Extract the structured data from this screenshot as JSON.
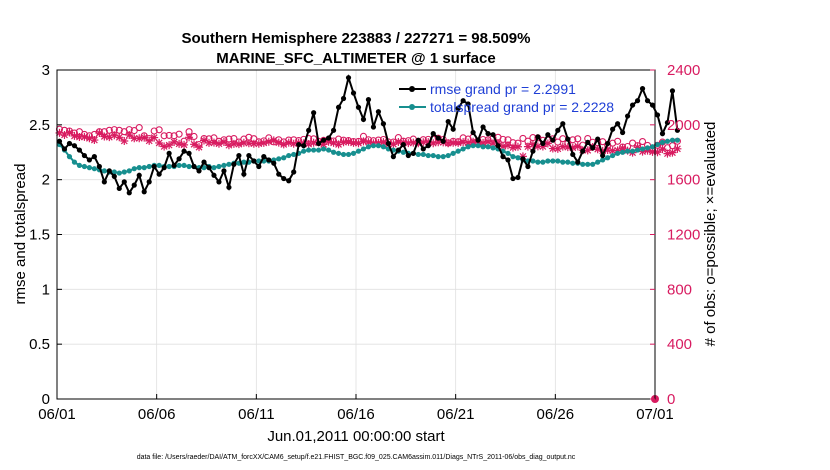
{
  "figure": {
    "title_line1": "Southern Hemisphere 223883 / 227271 = 98.509%",
    "title_line2": "MARINE_SFC_ALTIMETER @ 1 surface",
    "footer": "data file: /Users/raeder/DAI/ATM_forcXX/CAM6_setup/f.e21.FHIST_BGC.f09_025.CAM6assim.011/Diags_NTrS_2011-06/obs_diag_output.nc",
    "colors": {
      "rmse": "#000000",
      "spread": "#178f8f",
      "obs": "#d81b60",
      "legend_text": "#1f3fd6",
      "grid": "#e0e0e0"
    }
  },
  "chart_data": {
    "type": "line",
    "xlabel": "Jun.01,2011 00:00:00 start",
    "ylabel": "rmse and totalspread",
    "ylabel_right": "# of obs: o=possible; ×=evaluated",
    "x_ticks": [
      "06/01",
      "06/06",
      "06/11",
      "06/16",
      "06/21",
      "06/26",
      "07/01"
    ],
    "y_ticks": [
      "0",
      "0.5",
      "1",
      "1.5",
      "2",
      "2.5",
      "3"
    ],
    "y_ticks_right": [
      "0",
      "400",
      "800",
      "1200",
      "1600",
      "2000",
      "2400"
    ],
    "xlim_days": [
      0,
      30
    ],
    "ylim": [
      0,
      3
    ],
    "ylim_right": [
      0,
      2400
    ],
    "grid": true,
    "legend_position": "top-right",
    "samples_per_day": 4,
    "series": [
      {
        "name": "rmse grand pr = 2.2991",
        "axis": "left",
        "marker": "dot",
        "values": [
          2.35,
          2.28,
          2.33,
          2.31,
          2.27,
          2.22,
          2.18,
          2.21,
          2.12,
          1.98,
          2.08,
          2.03,
          1.92,
          1.98,
          1.88,
          1.95,
          2.04,
          1.89,
          1.98,
          2.12,
          2.05,
          2.11,
          2.24,
          2.13,
          2.19,
          2.26,
          2.24,
          2.12,
          2.08,
          2.16,
          2.11,
          2.04,
          1.98,
          2.08,
          1.93,
          2.14,
          2.22,
          2.05,
          2.22,
          2.17,
          2.12,
          2.21,
          2.18,
          2.15,
          2.05,
          2.01,
          1.99,
          2.07,
          2.32,
          2.31,
          2.45,
          2.61,
          2.33,
          2.36,
          2.38,
          2.45,
          2.66,
          2.74,
          2.93,
          2.79,
          2.66,
          2.55,
          2.73,
          2.48,
          2.62,
          2.51,
          2.33,
          2.21,
          2.27,
          2.32,
          2.22,
          2.24,
          2.36,
          2.28,
          2.31,
          2.42,
          2.38,
          2.35,
          2.53,
          2.46,
          2.65,
          2.72,
          2.69,
          2.43,
          2.36,
          2.48,
          2.42,
          2.41,
          2.31,
          2.21,
          2.18,
          2.01,
          2.02,
          2.19,
          2.12,
          2.26,
          2.39,
          2.33,
          2.41,
          2.36,
          2.45,
          2.51,
          2.37,
          2.23,
          2.16,
          2.26,
          2.34,
          2.29,
          2.37,
          2.22,
          2.33,
          2.46,
          2.51,
          2.43,
          2.58,
          2.68,
          2.72,
          2.83,
          2.72,
          2.68,
          2.59,
          2.42,
          2.52,
          2.81,
          2.45
        ]
      },
      {
        "name": "totalspread grand pr = 2.2228",
        "axis": "left",
        "marker": "dot",
        "values": [
          2.32,
          2.27,
          2.21,
          2.16,
          2.13,
          2.12,
          2.11,
          2.1,
          2.09,
          2.08,
          2.07,
          2.07,
          2.06,
          2.07,
          2.08,
          2.1,
          2.11,
          2.11,
          2.12,
          2.13,
          2.13,
          2.12,
          2.12,
          2.12,
          2.13,
          2.13,
          2.12,
          2.12,
          2.11,
          2.11,
          2.12,
          2.11,
          2.12,
          2.13,
          2.14,
          2.15,
          2.15,
          2.16,
          2.16,
          2.17,
          2.17,
          2.17,
          2.17,
          2.18,
          2.19,
          2.2,
          2.22,
          2.23,
          2.24,
          2.26,
          2.27,
          2.27,
          2.27,
          2.28,
          2.27,
          2.25,
          2.24,
          2.23,
          2.23,
          2.24,
          2.26,
          2.28,
          2.3,
          2.31,
          2.31,
          2.3,
          2.28,
          2.27,
          2.26,
          2.25,
          2.24,
          2.24,
          2.23,
          2.23,
          2.22,
          2.22,
          2.21,
          2.21,
          2.22,
          2.24,
          2.26,
          2.28,
          2.3,
          2.31,
          2.31,
          2.3,
          2.3,
          2.29,
          2.28,
          2.26,
          2.24,
          2.21,
          2.2,
          2.18,
          2.17,
          2.17,
          2.16,
          2.16,
          2.17,
          2.17,
          2.17,
          2.16,
          2.16,
          2.15,
          2.15,
          2.14,
          2.14,
          2.14,
          2.16,
          2.18,
          2.2,
          2.22,
          2.24,
          2.25,
          2.26,
          2.26,
          2.27,
          2.28,
          2.29,
          2.3,
          2.32,
          2.34,
          2.35,
          2.36,
          2.36
        ]
      },
      {
        "name": "possible",
        "axis": "right",
        "marker": "circle",
        "values": [
          1968,
          1960,
          1955,
          1940,
          1950,
          1930,
          1920,
          1930,
          1950,
          1950,
          1960,
          1965,
          1960,
          1950,
          1965,
          1958,
          1980,
          1920,
          1900,
          1955,
          1964,
          1920,
          1923,
          1920,
          1932,
          1881,
          1950,
          1915,
          1856,
          1900,
          1898,
          1905,
          1880,
          1891,
          1896,
          1900,
          1874,
          1896,
          1909,
          1899,
          1876,
          1883,
          1905,
          1876,
          1891,
          1875,
          1889,
          1891,
          1885,
          1894,
          1900,
          1898,
          1880,
          1887,
          1893,
          1882,
          1896,
          1888,
          1885,
          1878,
          1879,
          1916,
          1891,
          1884,
          1889,
          1893,
          1875,
          1874,
          1907,
          1881,
          1884,
          1896,
          1873,
          1892,
          1894,
          1894,
          1903,
          1893,
          1868,
          1880,
          1877,
          1905,
          1896,
          1910,
          1872,
          1893,
          1891,
          1904,
          1909,
          1894,
          1891,
          1870,
          1866,
          1901,
          1881,
          1907,
          1905,
          1887,
          1889,
          1898,
          1874,
          1899,
          1865,
          1891,
          1898,
          1852,
          1900,
          1873,
          1869,
          1877,
          1851,
          1866,
          1880,
          1838,
          1842,
          1867,
          1848,
          1878,
          1850,
          1820,
          1851,
          1874,
          1833,
          1848,
          1880
        ]
      },
      {
        "name": "evaluated",
        "axis": "right",
        "marker": "x",
        "values": [
          1941,
          1926,
          1944,
          1919,
          1911,
          1912,
          1902,
          1889,
          1940,
          1915,
          1910,
          1924,
          1909,
          1882,
          1926,
          1902,
          1902,
          1907,
          1883,
          1907,
          1868,
          1842,
          1852,
          1875,
          1861,
          1854,
          1909,
          1858,
          1837,
          1886,
          1868,
          1870,
          1862,
          1875,
          1851,
          1861,
          1859,
          1869,
          1866,
          1862,
          1862,
          1868,
          1877,
          1887,
          1870,
          1857,
          1870,
          1862,
          1869,
          1865,
          1860,
          1869,
          1871,
          1857,
          1877,
          1868,
          1857,
          1873,
          1877,
          1868,
          1866,
          1879,
          1874,
          1866,
          1868,
          1874,
          1858,
          1859,
          1875,
          1872,
          1867,
          1870,
          1866,
          1873,
          1874,
          1866,
          1873,
          1872,
          1866,
          1869,
          1868,
          1874,
          1870,
          1877,
          1872,
          1868,
          1877,
          1866,
          1867,
          1843,
          1851,
          1834,
          1840,
          1770,
          1841,
          1857,
          1843,
          1842,
          1864,
          1827,
          1825,
          1841,
          1837,
          1833,
          1843,
          1815,
          1814,
          1838,
          1822,
          1810,
          1816,
          1811,
          1814,
          1830,
          1812,
          1797,
          1836,
          1805,
          1812,
          1803,
          1800,
          1823,
          1790,
          1797,
          1825
        ]
      }
    ],
    "end_marker_right": {
      "x_day": 30,
      "value": 0
    }
  }
}
